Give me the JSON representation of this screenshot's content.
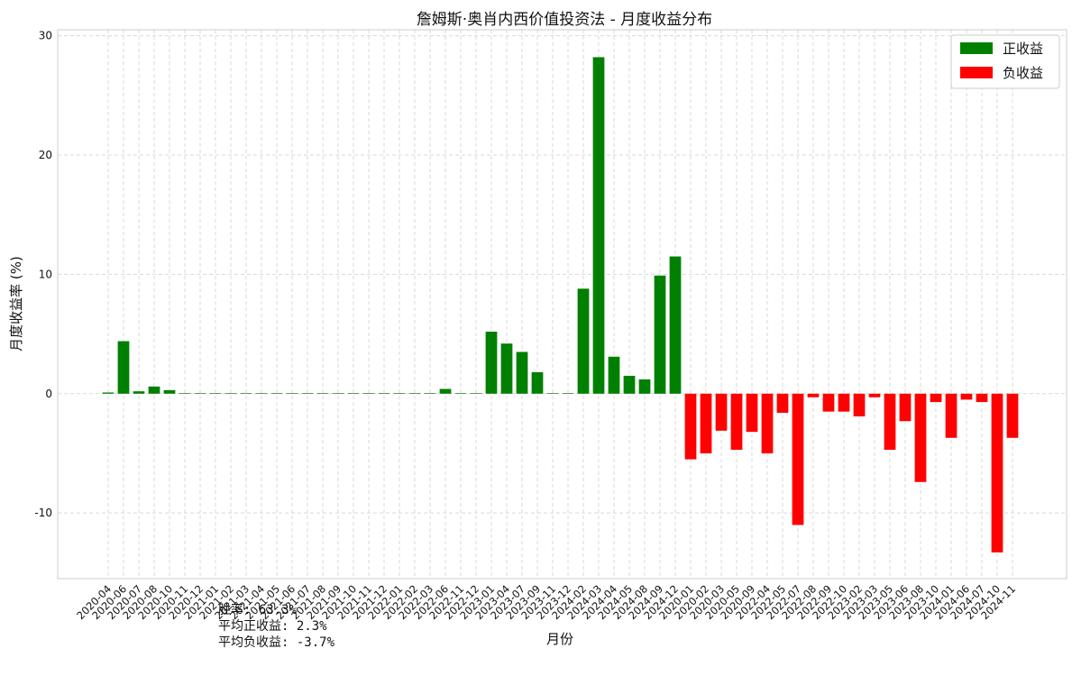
{
  "chart_data": {
    "type": "bar",
    "title": "詹姆斯·奥肖内西价值投资法 - 月度收益分布",
    "xlabel": "月份",
    "ylabel": "月度收益率 (%)",
    "ylim": [
      -15.5,
      30.5
    ],
    "yticks": [
      -10,
      0,
      10,
      20,
      30
    ],
    "grid": true,
    "legend_position": "top-right",
    "legend": [
      {
        "label": "正收益",
        "color": "#008000"
      },
      {
        "label": "负收益",
        "color": "#ff0000"
      }
    ],
    "categories": [
      "2020-04",
      "2020-06",
      "2020-07",
      "2020-08",
      "2020-10",
      "2020-11",
      "2020-12",
      "2021-01",
      "2021-02",
      "2021-03",
      "2021-04",
      "2021-05",
      "2021-06",
      "2021-07",
      "2021-08",
      "2021-09",
      "2021-10",
      "2021-11",
      "2021-12",
      "2022-01",
      "2022-02",
      "2022-03",
      "2022-06",
      "2022-11",
      "2022-12",
      "2023-01",
      "2023-04",
      "2023-07",
      "2023-09",
      "2023-11",
      "2023-12",
      "2024-02",
      "2024-03",
      "2024-04",
      "2024-05",
      "2024-08",
      "2024-09",
      "2024-12",
      "2020-01",
      "2020-02",
      "2020-03",
      "2020-05",
      "2020-09",
      "2022-04",
      "2022-05",
      "2022-07",
      "2022-08",
      "2022-09",
      "2022-10",
      "2023-02",
      "2023-03",
      "2023-05",
      "2023-06",
      "2023-08",
      "2023-10",
      "2024-01",
      "2024-06",
      "2024-07",
      "2024-10",
      "2024-11"
    ],
    "values": [
      0.1,
      4.4,
      0.2,
      0.6,
      0.3,
      0.05,
      0.05,
      0.05,
      0.05,
      0.05,
      0.05,
      0.05,
      0.05,
      0.05,
      0.05,
      0.05,
      0.05,
      0.05,
      0.05,
      0.05,
      0.05,
      0.05,
      0.4,
      0.05,
      0.05,
      5.2,
      4.2,
      3.5,
      1.8,
      0.05,
      0.05,
      8.8,
      28.2,
      3.1,
      1.5,
      1.2,
      9.9,
      11.5,
      -5.5,
      -5.0,
      -3.1,
      -4.7,
      -3.2,
      -5.0,
      -1.6,
      -11.0,
      -0.3,
      -1.5,
      -1.5,
      -1.9,
      -0.3,
      -4.7,
      -2.3,
      -7.4,
      -0.7,
      -3.7,
      -0.5,
      -0.7,
      -13.3,
      -3.7
    ],
    "colors": {
      "positive": "#008000",
      "negative": "#ff0000"
    }
  },
  "stats": {
    "win_rate": "胜率: 63.3%",
    "avg_positive": "平均正收益: 2.3%",
    "avg_negative": "平均负收益: -3.7%"
  }
}
